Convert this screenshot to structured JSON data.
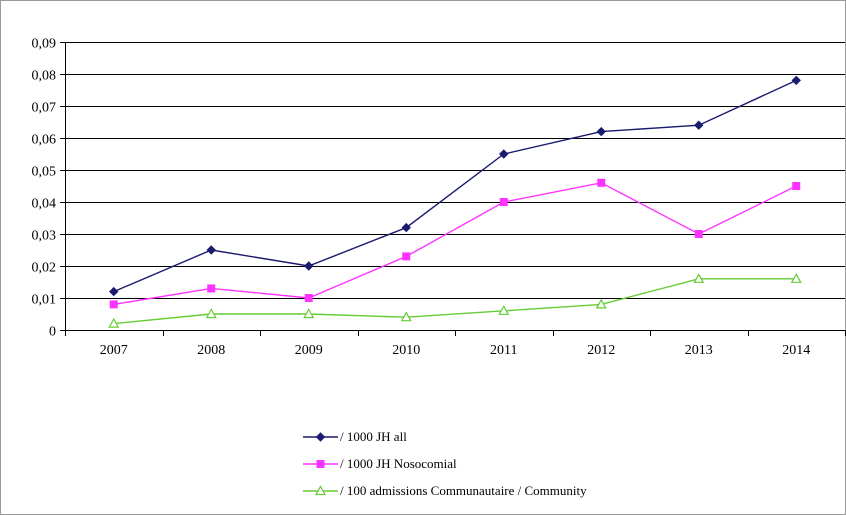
{
  "chart_data": {
    "type": "line",
    "title": "",
    "xlabel": "",
    "ylabel": "",
    "categories": [
      "2007",
      "2008",
      "2009",
      "2010",
      "2011",
      "2012",
      "2013",
      "2014"
    ],
    "ylim": [
      0,
      0.09
    ],
    "y_ticks": [
      0,
      0.01,
      0.02,
      0.03,
      0.04,
      0.05,
      0.06,
      0.07,
      0.08,
      0.09
    ],
    "y_tick_labels": [
      "0",
      "0,01",
      "0,02",
      "0,03",
      "0,04",
      "0,05",
      "0,06",
      "0,07",
      "0,08",
      "0,09"
    ],
    "grid": "horizontal",
    "legend_position": "bottom",
    "series": [
      {
        "name": "/ 1000 JH all",
        "color": "#1a1a6e",
        "marker": "diamond",
        "values": [
          0.012,
          0.025,
          0.02,
          0.032,
          0.055,
          0.062,
          0.064,
          0.078
        ]
      },
      {
        "name": "/ 1000 JH Nosocomial",
        "color": "#ff33ff",
        "marker": "square",
        "values": [
          0.008,
          0.013,
          0.01,
          0.023,
          0.04,
          0.046,
          0.03,
          0.045
        ]
      },
      {
        "name": "/ 100 admissions Communautaire / Community",
        "color": "#66cc33",
        "marker": "triangle",
        "values": [
          0.002,
          0.005,
          0.005,
          0.004,
          0.006,
          0.008,
          0.016,
          0.016
        ]
      }
    ]
  }
}
